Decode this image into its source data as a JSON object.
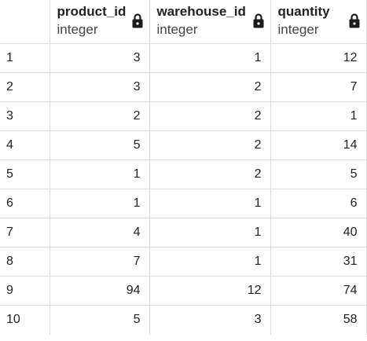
{
  "columns": [
    {
      "name": "product_id",
      "type": "integer"
    },
    {
      "name": "warehouse_id",
      "type": "integer"
    },
    {
      "name": "quantity",
      "type": "integer"
    }
  ],
  "lock_icon": "lock-icon",
  "rows": [
    {
      "index": "1",
      "product_id": "3",
      "warehouse_id": "1",
      "quantity": "12"
    },
    {
      "index": "2",
      "product_id": "3",
      "warehouse_id": "2",
      "quantity": "7"
    },
    {
      "index": "3",
      "product_id": "2",
      "warehouse_id": "2",
      "quantity": "1"
    },
    {
      "index": "4",
      "product_id": "5",
      "warehouse_id": "2",
      "quantity": "14"
    },
    {
      "index": "5",
      "product_id": "1",
      "warehouse_id": "2",
      "quantity": "5"
    },
    {
      "index": "6",
      "product_id": "1",
      "warehouse_id": "1",
      "quantity": "6"
    },
    {
      "index": "7",
      "product_id": "4",
      "warehouse_id": "1",
      "quantity": "40"
    },
    {
      "index": "8",
      "product_id": "7",
      "warehouse_id": "1",
      "quantity": "31"
    },
    {
      "index": "9",
      "product_id": "94",
      "warehouse_id": "12",
      "quantity": "74"
    },
    {
      "index": "10",
      "product_id": "5",
      "warehouse_id": "3",
      "quantity": "58"
    }
  ]
}
